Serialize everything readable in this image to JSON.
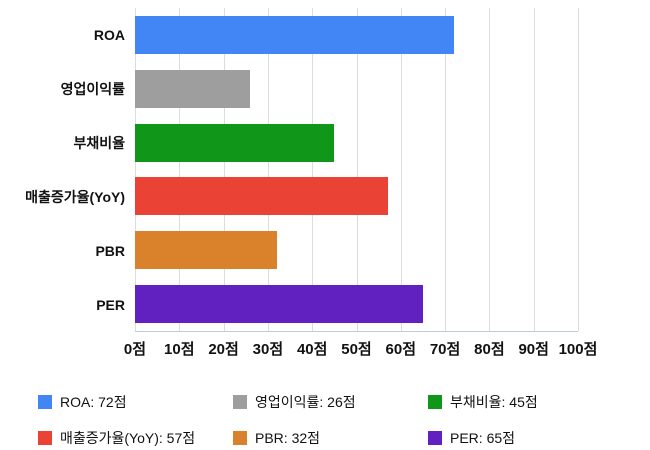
{
  "chart_data": {
    "type": "bar",
    "orientation": "horizontal",
    "title": "",
    "xlabel": "",
    "ylabel": "",
    "xlim": [
      0,
      100
    ],
    "grid": true,
    "legend_position": "bottom",
    "categories": [
      "ROA",
      "영업이익률",
      "부채비율",
      "매출증가율(YoY)",
      "PBR",
      "PER"
    ],
    "values": [
      72,
      26,
      45,
      57,
      32,
      65
    ],
    "colors": [
      "#4285F4",
      "#9E9E9E",
      "#109618",
      "#EA4335",
      "#D9822B",
      "#6021C0"
    ],
    "x_ticks": [
      "0점",
      "10점",
      "20점",
      "30점",
      "40점",
      "50점",
      "60점",
      "70점",
      "80점",
      "90점",
      "100점"
    ],
    "unit": "점"
  },
  "legend": {
    "items": [
      {
        "label": "ROA: 72점",
        "color": "#4285F4"
      },
      {
        "label": "영업이익률: 26점",
        "color": "#9E9E9E"
      },
      {
        "label": "부채비율: 45점",
        "color": "#109618"
      },
      {
        "label": "매출증가율(YoY): 57점",
        "color": "#EA4335"
      },
      {
        "label": "PBR: 32점",
        "color": "#D9822B"
      },
      {
        "label": "PER: 65점",
        "color": "#6021C0"
      }
    ]
  }
}
